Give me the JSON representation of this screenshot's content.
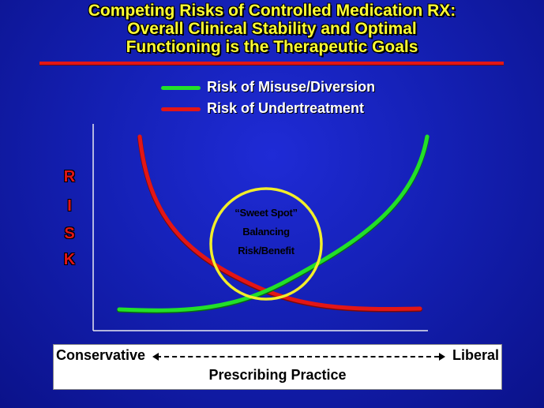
{
  "title": {
    "line1": "Competing Risks of Controlled Medication RX:",
    "line2": "Overall Clinical Stability and Optimal",
    "line3": "Functioning is the Therapeutic Goals"
  },
  "legend": [
    {
      "label": "Risk of Misuse/Diversion",
      "color": "#22e02a"
    },
    {
      "label": "Risk of Undertreatment",
      "color": "#e31616"
    }
  ],
  "y_axis_letters": [
    "R",
    "I",
    "S",
    "K"
  ],
  "sweet_spot": {
    "line1": "“Sweet Spot”",
    "line2": "Balancing",
    "line3": "Risk/Benefit",
    "circle_color": "#f2ee2a"
  },
  "x_axis": {
    "left_label": "Conservative",
    "right_label": "Liberal",
    "title": "Prescribing Practice"
  },
  "colors": {
    "background": "#1420b4",
    "title_text": "#ffff33",
    "rule": "#e31616",
    "risk_letters": "#e31616"
  }
}
